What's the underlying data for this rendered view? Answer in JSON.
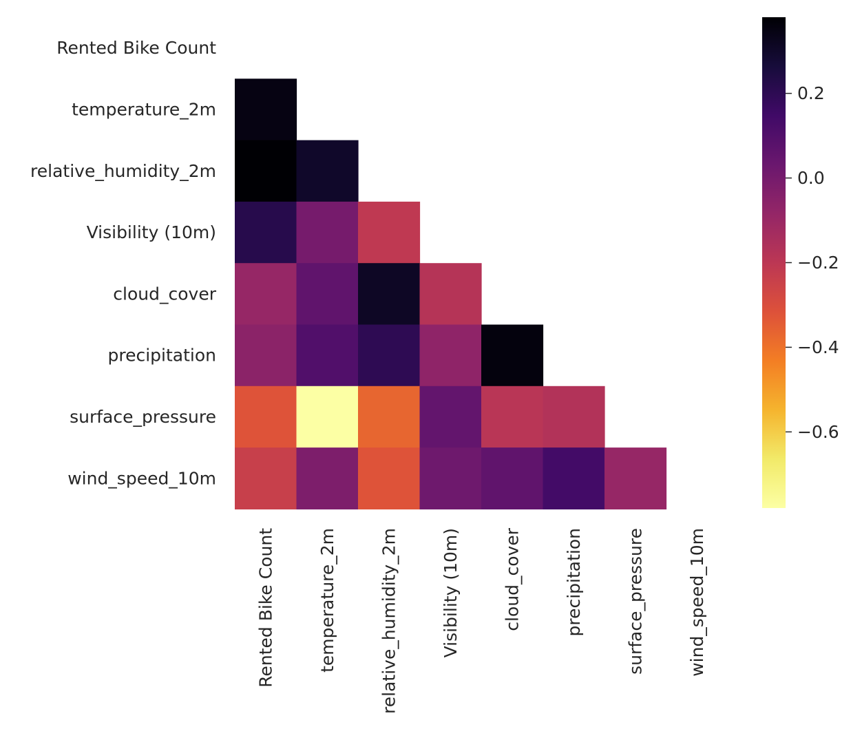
{
  "chart_data": {
    "type": "heatmap",
    "title": "",
    "xlabel": "",
    "ylabel": "",
    "variables": [
      "Rented Bike Count",
      "temperature_2m",
      "relative_humidity_2m",
      "Visibility (10m)",
      "cloud_cover",
      "precipitation",
      "surface_pressure",
      "wind_speed_10m"
    ],
    "mask": "upper triangle including diagonal",
    "cells": [
      {
        "row": 1,
        "col": 0,
        "value": 0.35
      },
      {
        "row": 2,
        "col": 0,
        "value": 0.38
      },
      {
        "row": 2,
        "col": 1,
        "value": 0.3
      },
      {
        "row": 3,
        "col": 0,
        "value": 0.22
      },
      {
        "row": 3,
        "col": 1,
        "value": 0.0
      },
      {
        "row": 3,
        "col": 2,
        "value": -0.21
      },
      {
        "row": 4,
        "col": 0,
        "value": -0.09
      },
      {
        "row": 4,
        "col": 1,
        "value": 0.06
      },
      {
        "row": 4,
        "col": 2,
        "value": 0.31
      },
      {
        "row": 4,
        "col": 3,
        "value": -0.18
      },
      {
        "row": 5,
        "col": 0,
        "value": -0.06
      },
      {
        "row": 5,
        "col": 1,
        "value": 0.1
      },
      {
        "row": 5,
        "col": 2,
        "value": 0.2
      },
      {
        "row": 5,
        "col": 3,
        "value": -0.07
      },
      {
        "row": 5,
        "col": 4,
        "value": 0.36
      },
      {
        "row": 6,
        "col": 0,
        "value": -0.32
      },
      {
        "row": 6,
        "col": 1,
        "value": -0.78
      },
      {
        "row": 6,
        "col": 2,
        "value": -0.37
      },
      {
        "row": 6,
        "col": 3,
        "value": 0.05
      },
      {
        "row": 6,
        "col": 4,
        "value": -0.19
      },
      {
        "row": 6,
        "col": 5,
        "value": -0.17
      },
      {
        "row": 7,
        "col": 0,
        "value": -0.24
      },
      {
        "row": 7,
        "col": 1,
        "value": -0.02
      },
      {
        "row": 7,
        "col": 2,
        "value": -0.32
      },
      {
        "row": 7,
        "col": 3,
        "value": 0.02
      },
      {
        "row": 7,
        "col": 4,
        "value": 0.06
      },
      {
        "row": 7,
        "col": 5,
        "value": 0.14
      },
      {
        "row": 7,
        "col": 6,
        "value": -0.09
      }
    ],
    "colorbar": {
      "colormap": "inferno_r",
      "vmin": -0.78,
      "vmax": 0.38,
      "ticks": [
        0.2,
        0.0,
        -0.2,
        -0.4,
        -0.6
      ],
      "tick_labels": [
        "0.2",
        "0.0",
        "−0.2",
        "−0.4",
        "−0.6"
      ]
    },
    "grid": false,
    "legend": "colorbar-right"
  }
}
